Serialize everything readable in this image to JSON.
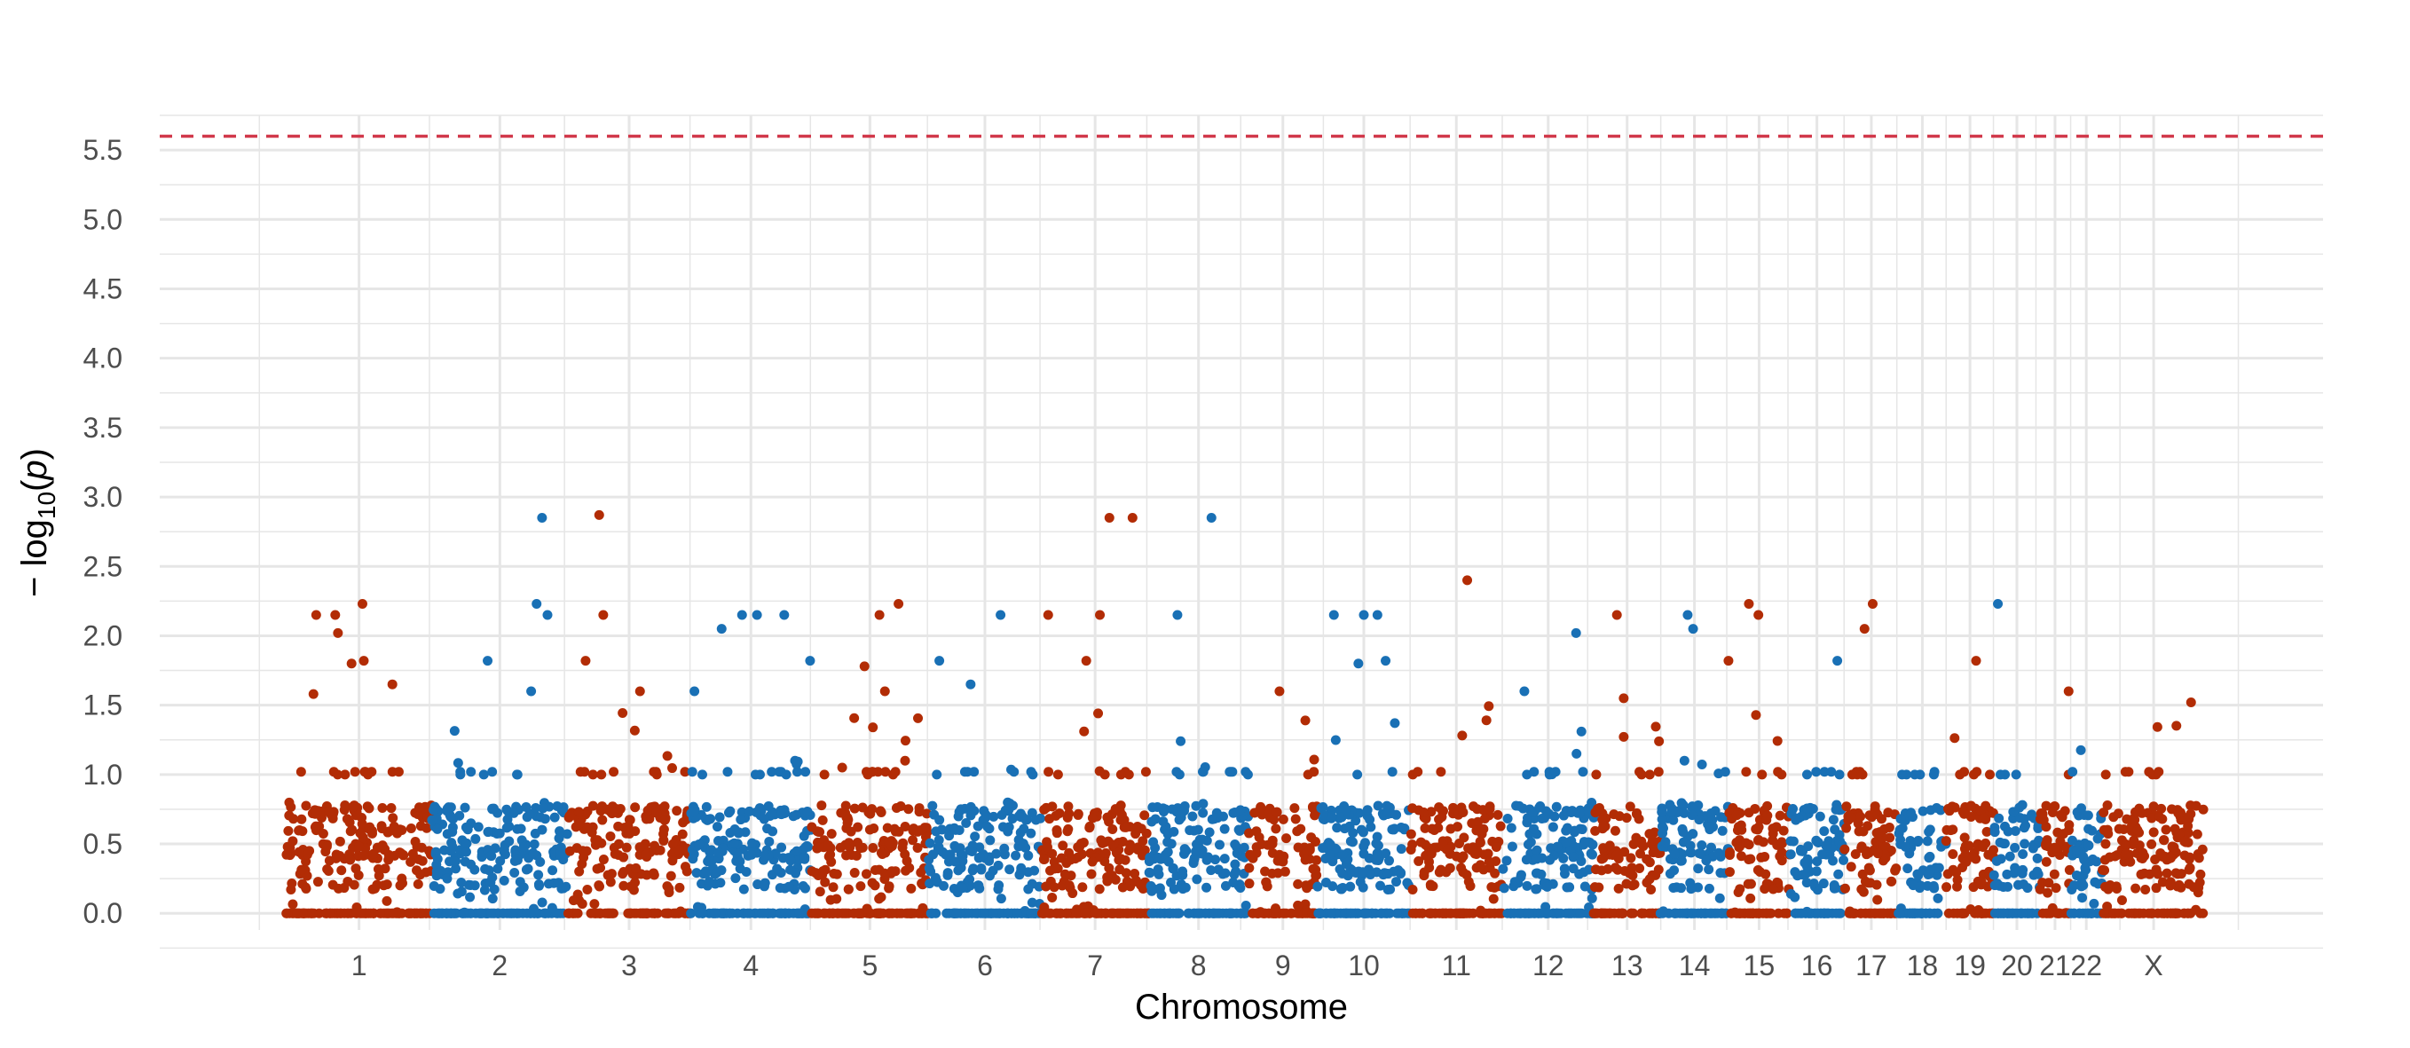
{
  "chart_data": {
    "type": "scatter",
    "title": "",
    "xlabel": "Chromosome",
    "ylabel": {
      "prefix": "− log",
      "sub": "10",
      "open": "(",
      "var": "p",
      "close": ")"
    },
    "ylim": [
      -0.12,
      5.75
    ],
    "yticks": [
      "0.0",
      "0.5",
      "1.0",
      "1.5",
      "2.0",
      "2.5",
      "3.0",
      "3.5",
      "4.0",
      "4.5",
      "5.0",
      "5.5"
    ],
    "threshold": 5.6,
    "grid": true,
    "colors": {
      "odd": "#b22c05",
      "even": "#1970b5",
      "threshold": "#d1384a",
      "grid": "#e6e6e6"
    },
    "chromosomes": [
      {
        "label": "1",
        "start": 0,
        "end": 1.07
      },
      {
        "label": "2",
        "start": 1.07,
        "end": 2.07
      },
      {
        "label": "3",
        "start": 2.07,
        "end": 2.97
      },
      {
        "label": "4",
        "start": 2.97,
        "end": 3.86
      },
      {
        "label": "5",
        "start": 3.86,
        "end": 4.72
      },
      {
        "label": "6",
        "start": 4.72,
        "end": 5.55
      },
      {
        "label": "7",
        "start": 5.55,
        "end": 6.34
      },
      {
        "label": "8",
        "start": 6.34,
        "end": 7.07
      },
      {
        "label": "9",
        "start": 7.07,
        "end": 7.58
      },
      {
        "label": "10",
        "start": 7.58,
        "end": 8.26
      },
      {
        "label": "11",
        "start": 8.26,
        "end": 8.94
      },
      {
        "label": "12",
        "start": 8.94,
        "end": 9.61
      },
      {
        "label": "13",
        "start": 9.61,
        "end": 10.1
      },
      {
        "label": "14",
        "start": 10.1,
        "end": 10.6
      },
      {
        "label": "15",
        "start": 10.6,
        "end": 11.05
      },
      {
        "label": "16",
        "start": 11.05,
        "end": 11.45
      },
      {
        "label": "17",
        "start": 11.45,
        "end": 11.85
      },
      {
        "label": "18",
        "start": 11.85,
        "end": 12.2
      },
      {
        "label": "19",
        "start": 12.2,
        "end": 12.55
      },
      {
        "label": "20",
        "start": 12.55,
        "end": 12.89
      },
      {
        "label": "21",
        "start": 12.89,
        "end": 13.11
      },
      {
        "label": "22",
        "start": 13.11,
        "end": 13.35
      },
      {
        "label": "X",
        "start": 13.35,
        "end": 14.1
      }
    ],
    "peaks": [
      [
        0.2,
        1.58
      ],
      [
        0.22,
        2.15
      ],
      [
        0.36,
        2.15
      ],
      [
        0.38,
        2.02
      ],
      [
        0.48,
        1.8
      ],
      [
        0.56,
        2.23
      ],
      [
        0.57,
        1.82
      ],
      [
        0.78,
        1.65
      ],
      [
        1.48,
        1.82
      ],
      [
        1.8,
        1.6
      ],
      [
        1.84,
        2.23
      ],
      [
        1.88,
        2.85
      ],
      [
        1.92,
        2.15
      ],
      [
        2.2,
        1.82
      ],
      [
        2.3,
        2.87
      ],
      [
        2.33,
        2.15
      ],
      [
        2.6,
        1.6
      ],
      [
        3.0,
        1.6
      ],
      [
        3.2,
        2.05
      ],
      [
        3.35,
        2.15
      ],
      [
        3.46,
        2.15
      ],
      [
        3.66,
        2.15
      ],
      [
        3.85,
        1.82
      ],
      [
        4.25,
        1.78
      ],
      [
        4.36,
        2.15
      ],
      [
        4.5,
        2.23
      ],
      [
        4.4,
        1.6
      ],
      [
        4.8,
        1.82
      ],
      [
        5.03,
        1.65
      ],
      [
        5.25,
        2.15
      ],
      [
        5.6,
        2.15
      ],
      [
        5.88,
        1.82
      ],
      [
        5.98,
        2.15
      ],
      [
        6.05,
        2.85
      ],
      [
        6.22,
        2.85
      ],
      [
        6.55,
        2.15
      ],
      [
        6.8,
        2.85
      ],
      [
        7.3,
        1.6
      ],
      [
        7.7,
        2.15
      ],
      [
        7.88,
        1.8
      ],
      [
        7.92,
        2.15
      ],
      [
        8.02,
        2.15
      ],
      [
        8.08,
        1.82
      ],
      [
        8.68,
        2.4
      ],
      [
        9.1,
        1.6
      ],
      [
        9.48,
        2.02
      ],
      [
        9.78,
        2.15
      ],
      [
        9.83,
        1.55
      ],
      [
        10.3,
        2.15
      ],
      [
        10.34,
        2.05
      ],
      [
        10.6,
        1.82
      ],
      [
        10.75,
        2.23
      ],
      [
        10.82,
        2.15
      ],
      [
        11.4,
        1.82
      ],
      [
        11.6,
        2.05
      ],
      [
        11.66,
        2.23
      ],
      [
        12.42,
        1.82
      ],
      [
        12.58,
        2.23
      ],
      [
        13.1,
        1.6
      ],
      [
        14.0,
        1.52
      ]
    ]
  }
}
